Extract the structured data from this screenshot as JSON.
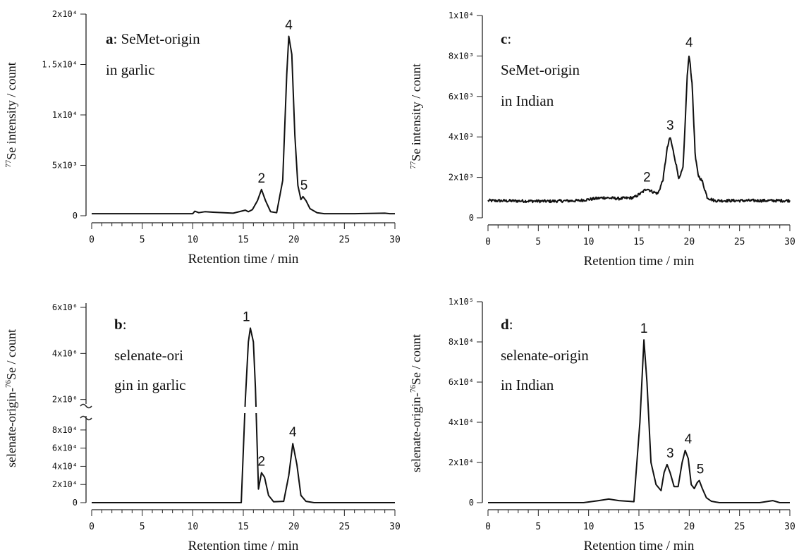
{
  "chart_data": [
    {
      "id": "a",
      "type": "line",
      "panel_letter": "a",
      "panel_text": [
        ": SeMet-origin",
        "in garlic"
      ],
      "ylabel_sup": "77",
      "ylabel_rest": "Se intensity / count",
      "xlabel": "Retention time / min",
      "xlim": [
        0,
        30
      ],
      "ylim": [
        0,
        20000
      ],
      "xticks": [
        "0",
        "5",
        "10",
        "15",
        "20",
        "25",
        "30"
      ],
      "yticks": [
        {
          "v": 0,
          "t": "0"
        },
        {
          "v": 5000,
          "t": "5x10³"
        },
        {
          "v": 10000,
          "t": "1x10⁴"
        },
        {
          "v": 15000,
          "t": "1.5x10⁴"
        },
        {
          "v": 20000,
          "t": "2x10⁴"
        }
      ],
      "noise": 0,
      "baseline": 200,
      "series": [
        {
          "x": [
            0,
            10,
            10.2,
            10.6,
            11.2,
            12,
            14,
            15.2,
            15.5,
            15.9,
            16.4,
            16.8,
            17.2,
            17.7,
            18.3,
            18.9,
            19.3,
            19.5,
            19.8,
            20.1,
            20.4,
            20.7,
            20.9,
            21.2,
            21.6,
            22.3,
            23,
            26,
            29,
            29.5,
            30
          ],
          "y": [
            200,
            200,
            450,
            300,
            400,
            350,
            250,
            550,
            400,
            600,
            1500,
            2600,
            1500,
            400,
            300,
            3500,
            14000,
            17800,
            16000,
            8000,
            3000,
            1600,
            1900,
            1500,
            700,
            300,
            200,
            200,
            250,
            200,
            200
          ]
        }
      ],
      "peaks": [
        {
          "label": "2",
          "x": 16.8,
          "y": 2600
        },
        {
          "label": "4",
          "x": 19.5,
          "y": 17800
        },
        {
          "label": "5",
          "x": 21,
          "y": 1900
        }
      ]
    },
    {
      "id": "c",
      "type": "line",
      "panel_letter": "c",
      "panel_text": [
        ":",
        "SeMet-origin",
        "in Indian"
      ],
      "ylabel_sup": "77",
      "ylabel_rest": "Se intensity / count",
      "xlabel": "Retention time / min",
      "xlim": [
        0,
        30
      ],
      "ylim": [
        0,
        10000
      ],
      "xticks": [
        "0",
        "5",
        "10",
        "15",
        "20",
        "25",
        "30"
      ],
      "yticks": [
        {
          "v": 0,
          "t": "0"
        },
        {
          "v": 2000,
          "t": "2x10³"
        },
        {
          "v": 4000,
          "t": "4x10³"
        },
        {
          "v": 6000,
          "t": "6x10³"
        },
        {
          "v": 8000,
          "t": "8x10³"
        },
        {
          "v": 10000,
          "t": "1x10⁴"
        }
      ],
      "noise": 70,
      "baseline": 850,
      "series": [
        {
          "x": [
            0,
            6,
            9,
            11.5,
            13,
            14.5,
            15.3,
            15.8,
            16.3,
            16.9,
            17.4,
            17.8,
            18.1,
            18.5,
            19,
            19.4,
            19.8,
            20,
            20.3,
            20.6,
            20.9,
            21.3,
            21.8,
            22.5,
            24,
            30
          ],
          "y": [
            850,
            820,
            850,
            1000,
            950,
            1000,
            1250,
            1450,
            1300,
            1200,
            1900,
            3400,
            4000,
            3100,
            1900,
            2500,
            7000,
            8100,
            6500,
            3000,
            2100,
            1800,
            1000,
            850,
            850,
            850
          ]
        }
      ],
      "peaks": [
        {
          "label": "2",
          "x": 15.8,
          "y": 1450
        },
        {
          "label": "3",
          "x": 18.1,
          "y": 4000
        },
        {
          "label": "4",
          "x": 20,
          "y": 8100
        }
      ]
    },
    {
      "id": "b",
      "type": "line",
      "panel_letter": "b",
      "panel_text": [
        ":",
        "selenate-ori",
        "gin in garlic"
      ],
      "ylabel_pre": "selenate-origin-",
      "ylabel_sup": "76",
      "ylabel_rest": "Se / count",
      "xlabel": "Retention time / min",
      "xlim": [
        0,
        30
      ],
      "ylim": [
        0,
        90000
      ],
      "ylim_upper": [
        0,
        6000000
      ],
      "xticks": [
        "0",
        "5",
        "10",
        "15",
        "20",
        "25",
        "30"
      ],
      "yticks": [
        {
          "v": 0,
          "t": "0"
        },
        {
          "v": 20000,
          "t": "2x10⁴"
        },
        {
          "v": 40000,
          "t": "4x10⁴"
        },
        {
          "v": 60000,
          "t": "6x10⁴"
        },
        {
          "v": 80000,
          "t": "8x10⁴"
        }
      ],
      "yticks_upper": [
        {
          "v": 2000000,
          "t": "2x10⁶"
        },
        {
          "v": 4000000,
          "t": "4x10⁶"
        },
        {
          "v": 6000000,
          "t": "6x10⁶"
        }
      ],
      "axis_break": true,
      "noise": 0,
      "baseline": 0,
      "series": [
        {
          "x": [
            0,
            14.8,
            15.2,
            15.5,
            15.7,
            16,
            16.2,
            16.5,
            16.8,
            17.1,
            17.5,
            18,
            19,
            19.5,
            19.9,
            20.3,
            20.7,
            21.2,
            22,
            30
          ],
          "y": [
            0,
            0,
            2000000,
            4500000,
            5100000,
            4500000,
            2500000,
            15000,
            33000,
            28000,
            8000,
            1000,
            1500,
            30000,
            65000,
            42000,
            8000,
            1500,
            0,
            0
          ]
        }
      ],
      "peaks": [
        {
          "label": "1",
          "x": 15.3,
          "y": 5100000,
          "upper": true
        },
        {
          "label": "2",
          "x": 16.8,
          "y": 33000
        },
        {
          "label": "4",
          "x": 19.9,
          "y": 65000
        }
      ]
    },
    {
      "id": "d",
      "type": "line",
      "panel_letter": "d",
      "panel_text": [
        ":",
        "selenate-origin",
        "in Indian"
      ],
      "ylabel_pre": "selenate-origin-",
      "ylabel_sup": "76",
      "ylabel_rest": "Se / count",
      "xlabel": "Retention time / min",
      "xlim": [
        0,
        30
      ],
      "ylim": [
        0,
        100000
      ],
      "xticks": [
        "0",
        "5",
        "10",
        "15",
        "20",
        "25",
        "30"
      ],
      "yticks": [
        {
          "v": 0,
          "t": "0"
        },
        {
          "v": 20000,
          "t": "2x10⁴"
        },
        {
          "v": 40000,
          "t": "4x10⁴"
        },
        {
          "v": 60000,
          "t": "6x10⁴"
        },
        {
          "v": 80000,
          "t": "8x10⁴"
        },
        {
          "v": 100000,
          "t": "1x10⁵"
        }
      ],
      "noise": 0,
      "baseline": 0,
      "series": [
        {
          "x": [
            0,
            9.5,
            11,
            12,
            13,
            14.5,
            15.1,
            15.5,
            15.8,
            16.2,
            16.7,
            17.2,
            17.5,
            17.8,
            18.1,
            18.5,
            18.9,
            19.3,
            19.6,
            19.9,
            20.2,
            20.5,
            20.8,
            21,
            21.3,
            21.7,
            22.2,
            23,
            27,
            28.3,
            29,
            30
          ],
          "y": [
            0,
            0,
            1000,
            1800,
            1000,
            500,
            40000,
            81000,
            60000,
            20000,
            9000,
            6000,
            15000,
            19000,
            15000,
            8000,
            8000,
            20000,
            26000,
            22000,
            9000,
            7000,
            10000,
            11000,
            7000,
            2500,
            700,
            0,
            0,
            1000,
            0,
            0
          ]
        }
      ],
      "peaks": [
        {
          "label": "1",
          "x": 15.5,
          "y": 81000
        },
        {
          "label": "3",
          "x": 18.1,
          "y": 19000
        },
        {
          "label": "4",
          "x": 19.9,
          "y": 26000
        },
        {
          "label": "5",
          "x": 21.1,
          "y": 11000
        }
      ]
    }
  ]
}
